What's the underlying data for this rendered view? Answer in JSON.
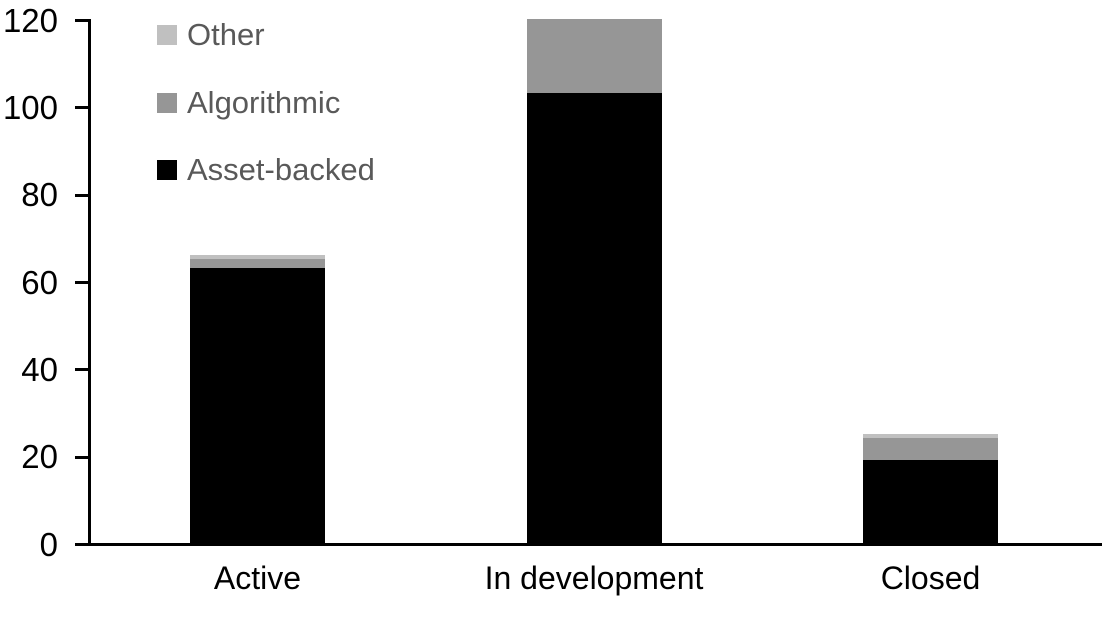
{
  "chart_data": {
    "type": "bar",
    "stacked": true,
    "title": "",
    "xlabel": "",
    "ylabel": "",
    "categories": [
      "Active",
      "In development",
      "Closed"
    ],
    "series": [
      {
        "name": "Asset-backed",
        "color": "#000000",
        "values": [
          63,
          103,
          19
        ]
      },
      {
        "name": "Algorithmic",
        "color": "#969696",
        "values": [
          2,
          17,
          5
        ]
      },
      {
        "name": "Other",
        "color": "#c0c0c0",
        "values": [
          1,
          0,
          1
        ]
      }
    ],
    "totals": [
      66,
      120,
      25
    ],
    "ylim": [
      0,
      120
    ],
    "yticks": [
      0,
      20,
      40,
      60,
      80,
      100,
      120
    ],
    "grid": false,
    "legend": {
      "position": "top-left",
      "order_top_to_bottom": [
        "Other",
        "Algorithmic",
        "Asset-backed"
      ],
      "text_color": "#595959"
    },
    "axis_color": "#000000"
  }
}
